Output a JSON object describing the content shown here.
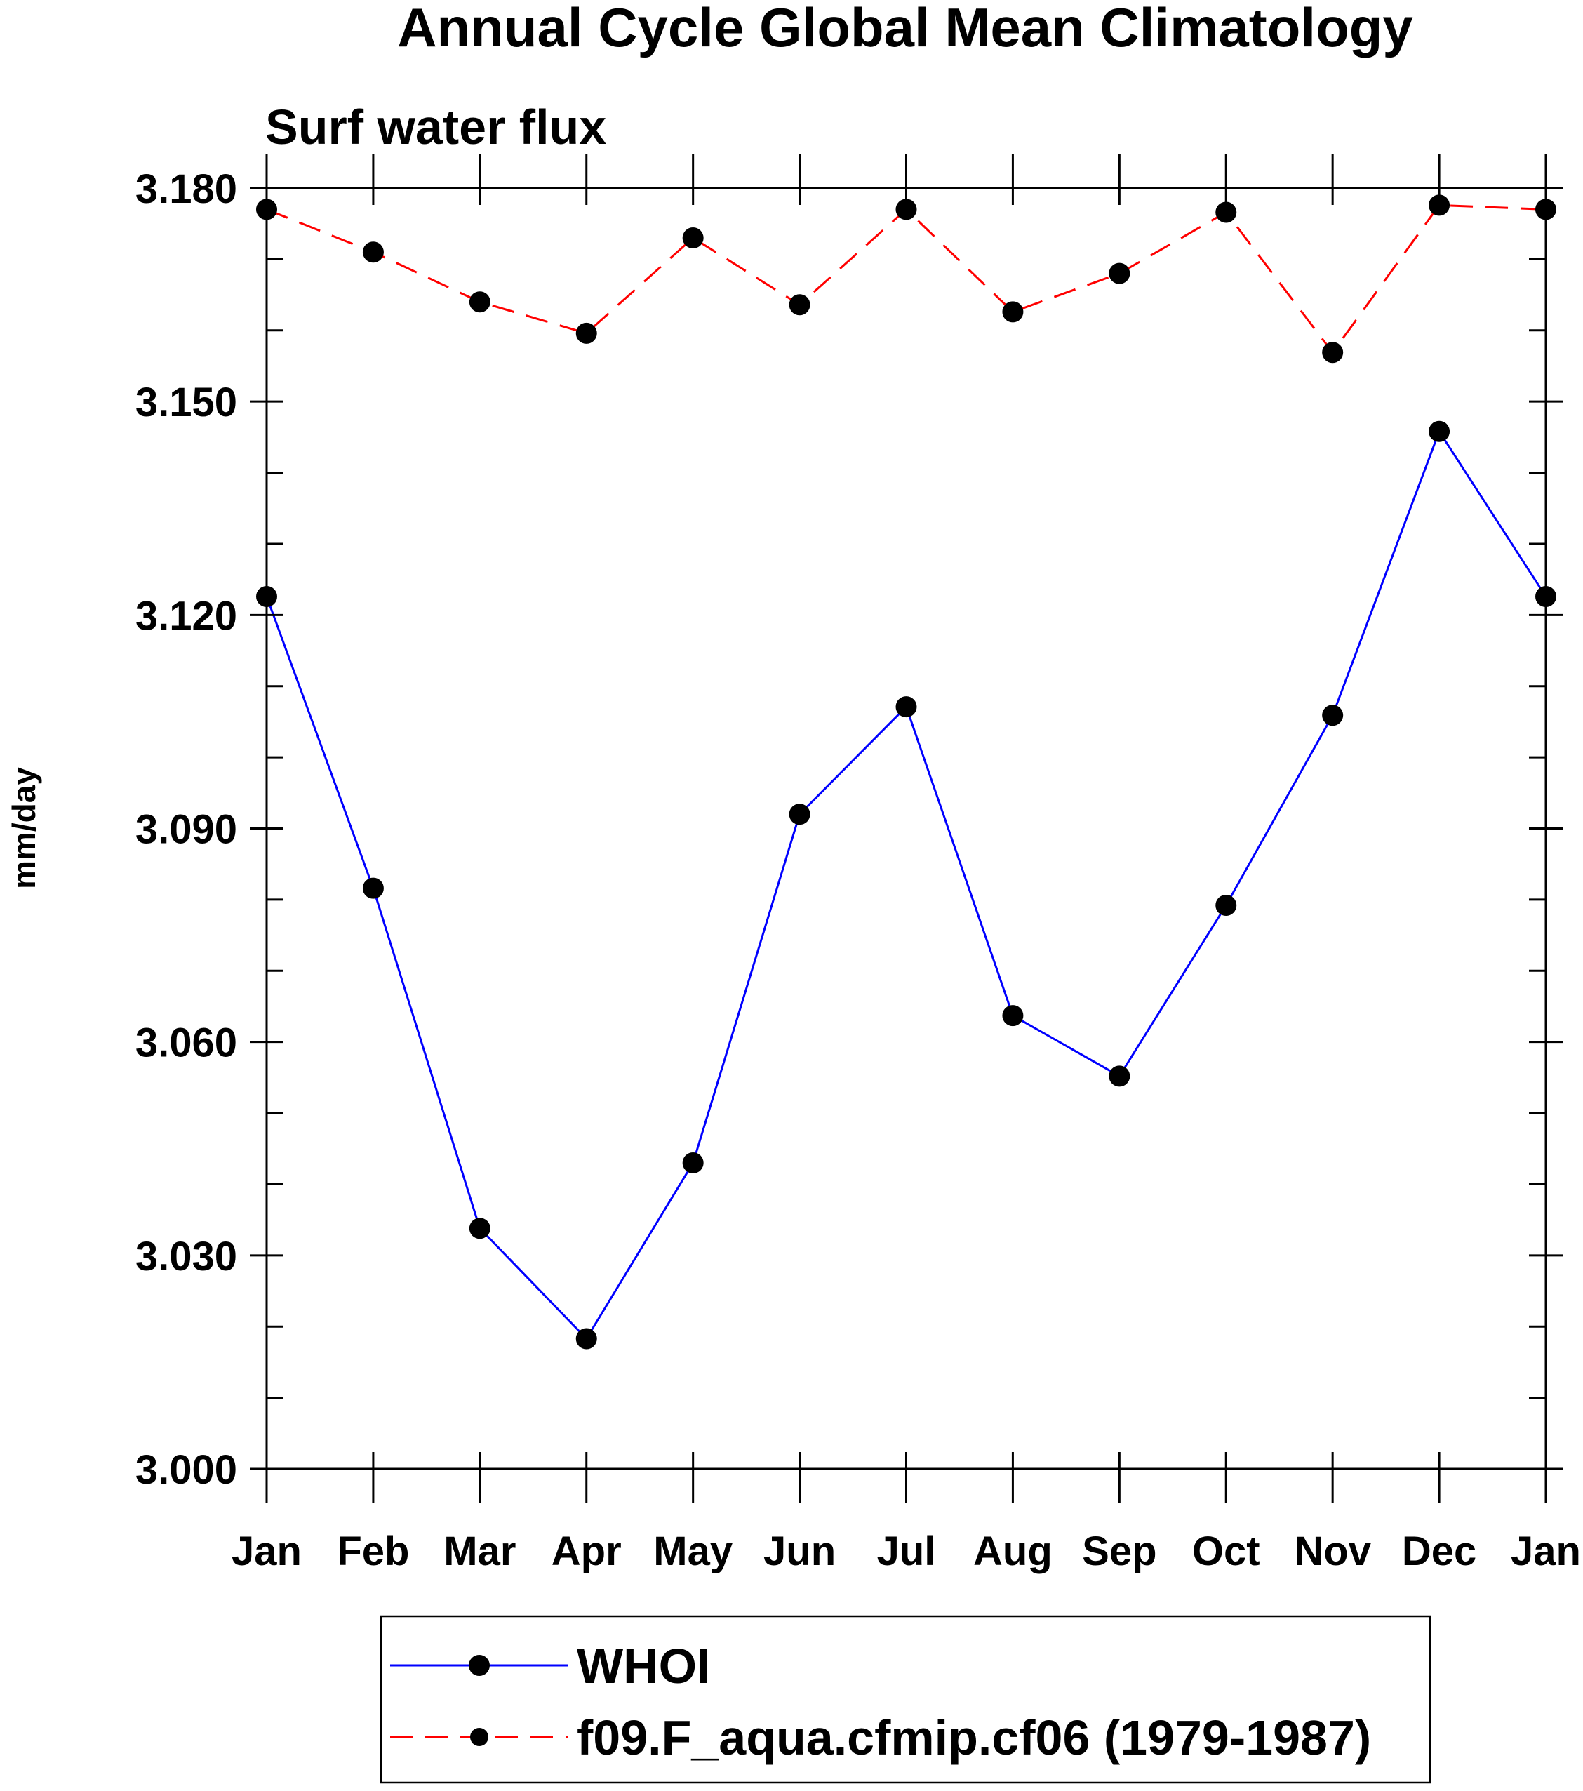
{
  "chart_data": {
    "type": "line",
    "title": "Annual Cycle Global Mean Climatology",
    "subtitle": "Surf water flux",
    "xlabel": "",
    "ylabel": "mm/day",
    "categories": [
      "Jan",
      "Feb",
      "Mar",
      "Apr",
      "May",
      "Jun",
      "Jul",
      "Aug",
      "Sep",
      "Oct",
      "Nov",
      "Dec",
      "Jan"
    ],
    "ylim": [
      3.0,
      3.18
    ],
    "y_ticks": [
      "3.000",
      "3.030",
      "3.060",
      "3.090",
      "3.120",
      "3.150",
      "3.180"
    ],
    "y_tick_values": [
      3.0,
      3.03,
      3.06,
      3.09,
      3.12,
      3.15,
      3.18
    ],
    "y_minor_step": 0.01,
    "grid": false,
    "legend_position": "bottom",
    "series": [
      {
        "name": "WHOI",
        "color": "#0000ff",
        "dash": "solid",
        "values": [
          3.1226,
          3.0816,
          3.0338,
          3.0183,
          3.043,
          3.092,
          3.1071,
          3.0637,
          3.0552,
          3.0792,
          3.1059,
          3.1458,
          3.1226
        ]
      },
      {
        "name": "f09.F_aqua.cfmip.cf06 (1979-1987)",
        "color": "#ff0000",
        "dash": "dashed",
        "values": [
          3.177,
          3.171,
          3.164,
          3.1596,
          3.173,
          3.1636,
          3.177,
          3.1626,
          3.168,
          3.1766,
          3.1569,
          3.1776,
          3.177
        ]
      }
    ]
  }
}
